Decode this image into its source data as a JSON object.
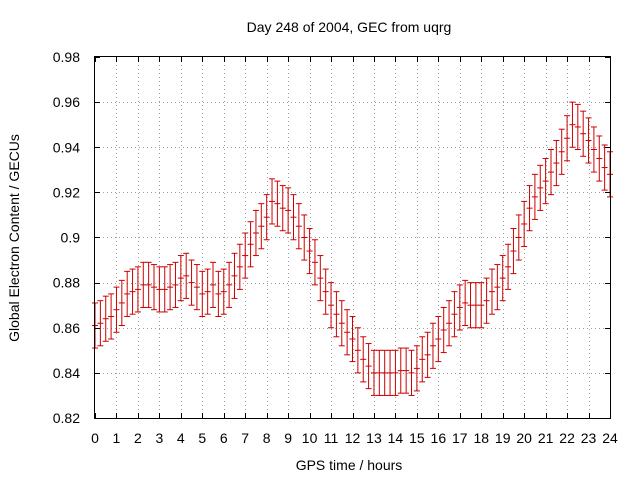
{
  "chart_data": {
    "type": "scatter",
    "title": "Day 248 of 2004, GEC from uqrg",
    "xlabel": "GPS time / hours",
    "ylabel": "Global Electron Content / GECUs",
    "xlim": [
      0,
      24
    ],
    "ylim": [
      0.82,
      0.98
    ],
    "xticks": [
      0,
      1,
      2,
      3,
      4,
      5,
      6,
      7,
      8,
      9,
      10,
      11,
      12,
      13,
      14,
      15,
      16,
      17,
      18,
      19,
      20,
      21,
      22,
      23,
      24
    ],
    "xtick_labels": [
      "0",
      "1",
      "2",
      "3",
      "4",
      "5",
      "6",
      "7",
      "8",
      "9",
      "10",
      "11",
      "12",
      "13",
      "14",
      "15",
      "16",
      "17",
      "18",
      "19",
      "20",
      "21",
      "22",
      "23",
      "24"
    ],
    "yticks": [
      0.82,
      0.84,
      0.86,
      0.88,
      0.9,
      0.92,
      0.94,
      0.96,
      0.98
    ],
    "ytick_labels": [
      "0.82",
      "0.84",
      "0.86",
      "0.88",
      "0.9",
      "0.92",
      "0.94",
      "0.96",
      "0.98"
    ],
    "grid": true,
    "color": "#cc0000",
    "error": 0.01,
    "series": [
      {
        "x": [
          0,
          0.25,
          0.5,
          0.75,
          1,
          1.25,
          1.5,
          1.75,
          2,
          2.25,
          2.5,
          2.75,
          3,
          3.25,
          3.5,
          3.75,
          4,
          4.25,
          4.5,
          4.75,
          5,
          5.25,
          5.5,
          5.75,
          6,
          6.25,
          6.5,
          6.75,
          7,
          7.25,
          7.5,
          7.75,
          8,
          8.25,
          8.5,
          8.75,
          9,
          9.25,
          9.5,
          9.75,
          10,
          10.25,
          10.5,
          10.75,
          11,
          11.25,
          11.5,
          11.75,
          12,
          12.25,
          12.5,
          12.75,
          13,
          13.25,
          13.5,
          13.75,
          14,
          14.25,
          14.5,
          14.75,
          15,
          15.25,
          15.5,
          15.75,
          16,
          16.25,
          16.5,
          16.75,
          17,
          17.25,
          17.5,
          17.75,
          18,
          18.25,
          18.5,
          18.75,
          19,
          19.25,
          19.5,
          19.75,
          20,
          20.25,
          20.5,
          20.75,
          21,
          21.25,
          21.5,
          21.75,
          22,
          22.25,
          22.5,
          22.75,
          23,
          23.25,
          23.5,
          23.75,
          24
        ],
        "y": [
          0.861,
          0.862,
          0.864,
          0.865,
          0.868,
          0.871,
          0.875,
          0.876,
          0.877,
          0.879,
          0.879,
          0.878,
          0.877,
          0.877,
          0.878,
          0.879,
          0.882,
          0.883,
          0.88,
          0.878,
          0.875,
          0.876,
          0.879,
          0.875,
          0.876,
          0.879,
          0.883,
          0.887,
          0.892,
          0.897,
          0.902,
          0.905,
          0.909,
          0.916,
          0.915,
          0.913,
          0.912,
          0.909,
          0.905,
          0.9,
          0.894,
          0.889,
          0.882,
          0.876,
          0.87,
          0.866,
          0.862,
          0.858,
          0.855,
          0.85,
          0.846,
          0.843,
          0.84,
          0.84,
          0.84,
          0.84,
          0.84,
          0.841,
          0.841,
          0.84,
          0.842,
          0.846,
          0.848,
          0.852,
          0.855,
          0.859,
          0.862,
          0.866,
          0.869,
          0.871,
          0.87,
          0.87,
          0.87,
          0.872,
          0.876,
          0.878,
          0.882,
          0.887,
          0.894,
          0.9,
          0.906,
          0.913,
          0.918,
          0.922,
          0.925,
          0.929,
          0.933,
          0.938,
          0.944,
          0.95,
          0.949,
          0.946,
          0.943,
          0.939,
          0.935,
          0.931,
          0.928
        ]
      }
    ]
  }
}
